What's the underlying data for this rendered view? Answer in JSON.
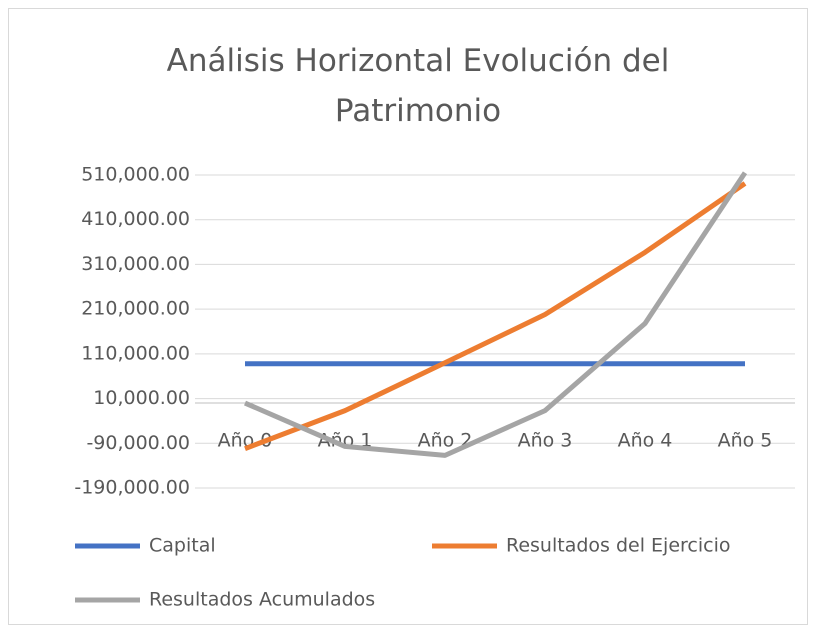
{
  "chart_data": {
    "type": "line",
    "title": "Análisis Horizontal Evolución del Patrimonio",
    "categories": [
      "Año 0",
      "Año 1",
      "Año 2",
      "Año 3",
      "Año 4",
      "Año 5"
    ],
    "series": [
      {
        "name": "Capital",
        "color": "#4472c4",
        "values": [
          88000,
          88000,
          88000,
          88000,
          88000,
          88000
        ]
      },
      {
        "name": "Resultados del Ejercicio",
        "color": "#ed7d31",
        "values": [
          -102000,
          -17000,
          90000,
          198000,
          337000,
          491000
        ]
      },
      {
        "name": "Resultados Acumulados",
        "color": "#a5a5a5",
        "values": [
          0,
          -97000,
          -117000,
          -17000,
          178000,
          515000
        ]
      }
    ],
    "ylim": [
      -190000,
      510000
    ],
    "yticks": [
      {
        "value": -190000,
        "label": "-190,000.00"
      },
      {
        "value": -90000,
        "label": "-90,000.00"
      },
      {
        "value": 10000,
        "label": "10,000.00"
      },
      {
        "value": 110000,
        "label": "110,000.00"
      },
      {
        "value": 210000,
        "label": "210,000.00"
      },
      {
        "value": 310000,
        "label": "310,000.00"
      },
      {
        "value": 410000,
        "label": "410,000.00"
      },
      {
        "value": 510000,
        "label": "510,000.00"
      }
    ],
    "grid": true,
    "legend": "bottom"
  }
}
